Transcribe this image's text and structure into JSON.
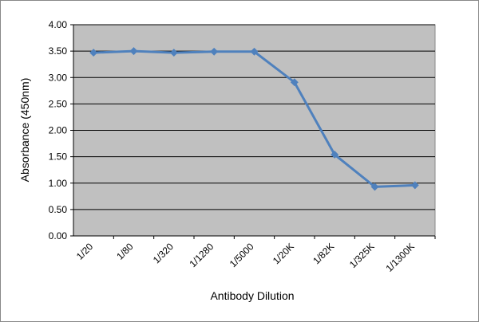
{
  "chart_data": {
    "type": "line",
    "x_label": "Antibody Dilution",
    "y_label": "Absorbance (450nm)",
    "categories": [
      "1/20",
      "1/80",
      "1/320",
      "1/1280",
      "1/5000",
      "1/20K",
      "1/82K",
      "1/325K",
      "1/1300K"
    ],
    "series": [
      {
        "name": "Absorbance",
        "color": "#4f81bd",
        "values": [
          3.47,
          3.5,
          3.47,
          3.49,
          3.49,
          2.91,
          1.54,
          0.93,
          0.96
        ]
      }
    ],
    "ylim": [
      0,
      4
    ],
    "yticks": [
      {
        "value": 0,
        "label": "0.00"
      },
      {
        "value": 0.5,
        "label": "0.50"
      },
      {
        "value": 1,
        "label": "1.00"
      },
      {
        "value": 1.5,
        "label": "1.50"
      },
      {
        "value": 2,
        "label": "2.00"
      },
      {
        "value": 2.5,
        "label": "2.50"
      },
      {
        "value": 3,
        "label": "3.00"
      },
      {
        "value": 3.5,
        "label": "3.50"
      },
      {
        "value": 4,
        "label": "4.00"
      }
    ],
    "grid": true,
    "plot_background": "#c0c0c0"
  }
}
